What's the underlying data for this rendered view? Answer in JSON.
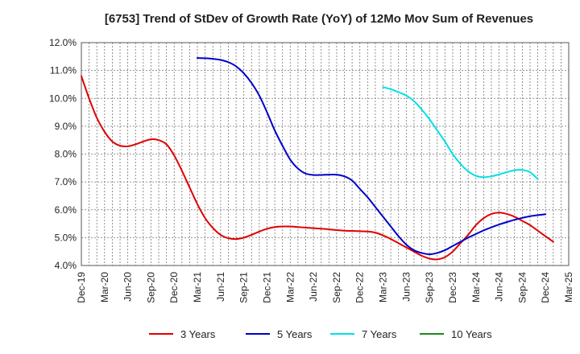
{
  "chart_data": {
    "type": "line",
    "title": "[6753]  Trend of StDev of Growth Rate (YoY) of 12Mo Mov Sum of Revenues",
    "xlabel": "",
    "ylabel": "",
    "ylim": [
      4.0,
      12.0
    ],
    "y_ticks": [
      "4.0%",
      "5.0%",
      "6.0%",
      "7.0%",
      "8.0%",
      "9.0%",
      "10.0%",
      "11.0%",
      "12.0%"
    ],
    "x_ticks": [
      "Dec-19",
      "Mar-20",
      "Jun-20",
      "Sep-20",
      "Dec-20",
      "Mar-21",
      "Jun-21",
      "Sep-21",
      "Dec-21",
      "Mar-22",
      "Jun-22",
      "Sep-22",
      "Dec-22",
      "Mar-23",
      "Jun-23",
      "Sep-23",
      "Dec-23",
      "Mar-24",
      "Jun-24",
      "Sep-24",
      "Dec-24",
      "Mar-25"
    ],
    "x_range_months": [
      0,
      63
    ],
    "grid": true,
    "legend_position": "bottom",
    "series": [
      {
        "name": "3 Years",
        "color": "#e00000",
        "points": [
          [
            0,
            10.8
          ],
          [
            1,
            10.0
          ],
          [
            2,
            9.3
          ],
          [
            3,
            8.8
          ],
          [
            4,
            8.45
          ],
          [
            5,
            8.3
          ],
          [
            6,
            8.28
          ],
          [
            7,
            8.35
          ],
          [
            8,
            8.45
          ],
          [
            9,
            8.53
          ],
          [
            10,
            8.5
          ],
          [
            11,
            8.35
          ],
          [
            12,
            7.95
          ],
          [
            13,
            7.4
          ],
          [
            14,
            6.8
          ],
          [
            15,
            6.2
          ],
          [
            16,
            5.7
          ],
          [
            17,
            5.35
          ],
          [
            18,
            5.1
          ],
          [
            19,
            4.98
          ],
          [
            20,
            4.95
          ],
          [
            21,
            5.0
          ],
          [
            22,
            5.1
          ],
          [
            23,
            5.22
          ],
          [
            24,
            5.32
          ],
          [
            25,
            5.38
          ],
          [
            26,
            5.4
          ],
          [
            27,
            5.4
          ],
          [
            28,
            5.38
          ],
          [
            29,
            5.36
          ],
          [
            30,
            5.34
          ],
          [
            31,
            5.32
          ],
          [
            32,
            5.3
          ],
          [
            33,
            5.27
          ],
          [
            34,
            5.25
          ],
          [
            35,
            5.24
          ],
          [
            36,
            5.23
          ],
          [
            37,
            5.22
          ],
          [
            38,
            5.18
          ],
          [
            39,
            5.08
          ],
          [
            40,
            4.95
          ],
          [
            41,
            4.8
          ],
          [
            42,
            4.65
          ],
          [
            43,
            4.5
          ],
          [
            44,
            4.35
          ],
          [
            45,
            4.25
          ],
          [
            46,
            4.22
          ],
          [
            47,
            4.3
          ],
          [
            48,
            4.5
          ],
          [
            49,
            4.8
          ],
          [
            50,
            5.1
          ],
          [
            51,
            5.45
          ],
          [
            52,
            5.7
          ],
          [
            53,
            5.85
          ],
          [
            54,
            5.9
          ],
          [
            55,
            5.85
          ],
          [
            56,
            5.75
          ],
          [
            57,
            5.6
          ],
          [
            58,
            5.45
          ],
          [
            59,
            5.25
          ],
          [
            60,
            5.05
          ],
          [
            61,
            4.85
          ]
        ]
      },
      {
        "name": "5 Years",
        "color": "#0000c8",
        "points": [
          [
            15,
            11.45
          ],
          [
            16,
            11.44
          ],
          [
            17,
            11.42
          ],
          [
            18,
            11.38
          ],
          [
            19,
            11.3
          ],
          [
            20,
            11.15
          ],
          [
            21,
            10.9
          ],
          [
            22,
            10.55
          ],
          [
            23,
            10.1
          ],
          [
            24,
            9.5
          ],
          [
            25,
            8.85
          ],
          [
            26,
            8.3
          ],
          [
            27,
            7.8
          ],
          [
            28,
            7.48
          ],
          [
            29,
            7.3
          ],
          [
            30,
            7.25
          ],
          [
            31,
            7.25
          ],
          [
            32,
            7.26
          ],
          [
            33,
            7.26
          ],
          [
            34,
            7.2
          ],
          [
            35,
            7.05
          ],
          [
            36,
            6.75
          ],
          [
            37,
            6.45
          ],
          [
            38,
            6.1
          ],
          [
            39,
            5.75
          ],
          [
            40,
            5.4
          ],
          [
            41,
            5.05
          ],
          [
            42,
            4.75
          ],
          [
            43,
            4.55
          ],
          [
            44,
            4.45
          ],
          [
            45,
            4.4
          ],
          [
            46,
            4.45
          ],
          [
            47,
            4.55
          ],
          [
            48,
            4.7
          ],
          [
            49,
            4.85
          ],
          [
            50,
            5.0
          ],
          [
            51,
            5.13
          ],
          [
            52,
            5.26
          ],
          [
            53,
            5.37
          ],
          [
            54,
            5.47
          ],
          [
            55,
            5.56
          ],
          [
            56,
            5.64
          ],
          [
            57,
            5.71
          ],
          [
            58,
            5.77
          ],
          [
            59,
            5.81
          ],
          [
            60,
            5.84
          ]
        ]
      },
      {
        "name": "7 Years",
        "color": "#00e0e8",
        "points": [
          [
            39,
            10.4
          ],
          [
            40,
            10.33
          ],
          [
            41,
            10.22
          ],
          [
            42,
            10.1
          ],
          [
            43,
            9.9
          ],
          [
            44,
            9.6
          ],
          [
            45,
            9.25
          ],
          [
            46,
            8.85
          ],
          [
            47,
            8.45
          ],
          [
            48,
            8.0
          ],
          [
            49,
            7.65
          ],
          [
            50,
            7.38
          ],
          [
            51,
            7.22
          ],
          [
            52,
            7.17
          ],
          [
            53,
            7.2
          ],
          [
            54,
            7.27
          ],
          [
            55,
            7.35
          ],
          [
            56,
            7.42
          ],
          [
            57,
            7.43
          ],
          [
            58,
            7.35
          ],
          [
            59,
            7.1
          ]
        ]
      },
      {
        "name": "10 Years",
        "color": "#1a8a1a",
        "points": []
      }
    ]
  }
}
